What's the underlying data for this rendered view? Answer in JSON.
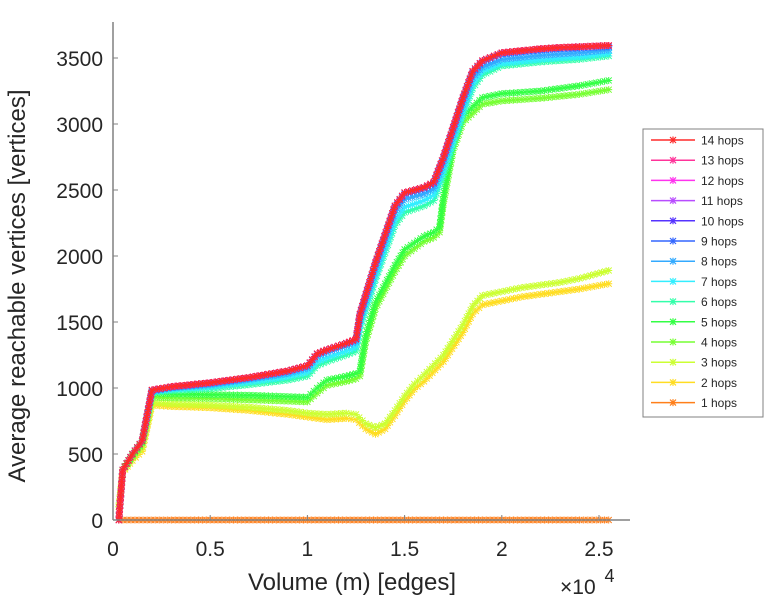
{
  "chart_data": {
    "type": "line",
    "title": "",
    "xlabel": "Volume (m) [edges]",
    "ylabel": "Average reachable vertices [vertices]",
    "x_exponent_label": "×10",
    "x_exponent_power": "4",
    "xlim": [
      0,
      2.66
    ],
    "ylim": [
      0,
      3700
    ],
    "x_ticks": [
      0,
      0.5,
      1,
      1.5,
      2,
      2.5
    ],
    "x_tick_labels": [
      "0",
      "0.5",
      "1",
      "1.5",
      "2",
      "2.5"
    ],
    "y_ticks": [
      0,
      500,
      1000,
      1500,
      2000,
      2500,
      3000,
      3500
    ],
    "y_tick_labels": [
      "0",
      "500",
      "1000",
      "1500",
      "2000",
      "2500",
      "3000",
      "3500"
    ],
    "grid": false,
    "legend_position": "right",
    "x_units_note": "x values in units of 10^4 edges",
    "series": [
      {
        "name": "14 hops",
        "color": "#ff2a2a",
        "x": [
          0.03,
          0.05,
          0.1,
          0.15,
          0.2,
          0.3,
          0.5,
          0.7,
          0.9,
          1.0,
          1.05,
          1.1,
          1.2,
          1.25,
          1.27,
          1.35,
          1.45,
          1.5,
          1.6,
          1.65,
          1.7,
          1.8,
          1.85,
          1.9,
          2.0,
          2.1,
          2.2,
          2.3,
          2.4,
          2.55
        ],
        "y": [
          0,
          380,
          500,
          600,
          985,
          1010,
          1040,
          1080,
          1130,
          1170,
          1260,
          1290,
          1340,
          1370,
          1560,
          1950,
          2380,
          2480,
          2520,
          2560,
          2750,
          3200,
          3400,
          3480,
          3540,
          3555,
          3570,
          3580,
          3585,
          3595
        ]
      },
      {
        "name": "13 hops",
        "color": "#ff3399",
        "x": [
          0.03,
          0.05,
          0.1,
          0.15,
          0.2,
          0.3,
          0.5,
          0.7,
          0.9,
          1.0,
          1.05,
          1.1,
          1.2,
          1.25,
          1.27,
          1.35,
          1.45,
          1.5,
          1.6,
          1.65,
          1.7,
          1.8,
          1.85,
          1.9,
          2.0,
          2.1,
          2.2,
          2.3,
          2.4,
          2.55
        ],
        "y": [
          0,
          380,
          500,
          600,
          985,
          1010,
          1040,
          1080,
          1130,
          1170,
          1260,
          1290,
          1340,
          1370,
          1560,
          1950,
          2380,
          2480,
          2520,
          2560,
          2750,
          3200,
          3400,
          3480,
          3540,
          3555,
          3570,
          3580,
          3585,
          3595
        ]
      },
      {
        "name": "12 hops",
        "color": "#ff33ee",
        "x": [
          0.03,
          0.05,
          0.1,
          0.15,
          0.2,
          0.3,
          0.5,
          0.7,
          0.9,
          1.0,
          1.05,
          1.1,
          1.2,
          1.25,
          1.27,
          1.35,
          1.45,
          1.5,
          1.6,
          1.65,
          1.7,
          1.8,
          1.85,
          1.9,
          2.0,
          2.1,
          2.2,
          2.3,
          2.4,
          2.55
        ],
        "y": [
          0,
          380,
          500,
          600,
          985,
          1010,
          1040,
          1080,
          1130,
          1170,
          1260,
          1290,
          1340,
          1370,
          1560,
          1950,
          2380,
          2480,
          2520,
          2560,
          2750,
          3200,
          3400,
          3480,
          3540,
          3555,
          3570,
          3580,
          3585,
          3595
        ]
      },
      {
        "name": "11 hops",
        "color": "#b84dff",
        "x": [
          0.03,
          0.05,
          0.1,
          0.15,
          0.2,
          0.3,
          0.5,
          0.7,
          0.9,
          1.0,
          1.05,
          1.1,
          1.2,
          1.25,
          1.27,
          1.35,
          1.45,
          1.5,
          1.6,
          1.65,
          1.7,
          1.8,
          1.85,
          1.9,
          2.0,
          2.1,
          2.2,
          2.3,
          2.4,
          2.55
        ],
        "y": [
          0,
          380,
          500,
          600,
          985,
          1010,
          1040,
          1080,
          1130,
          1170,
          1260,
          1290,
          1340,
          1370,
          1560,
          1950,
          2380,
          2480,
          2520,
          2560,
          2750,
          3200,
          3400,
          3480,
          3540,
          3555,
          3570,
          3580,
          3585,
          3595
        ]
      },
      {
        "name": "10 hops",
        "color": "#5533ff",
        "x": [
          0.03,
          0.05,
          0.1,
          0.15,
          0.2,
          0.3,
          0.5,
          0.7,
          0.9,
          1.0,
          1.05,
          1.1,
          1.2,
          1.25,
          1.27,
          1.35,
          1.45,
          1.5,
          1.6,
          1.65,
          1.7,
          1.8,
          1.85,
          1.9,
          2.0,
          2.1,
          2.2,
          2.3,
          2.4,
          2.55
        ],
        "y": [
          0,
          380,
          500,
          600,
          985,
          1010,
          1040,
          1080,
          1130,
          1170,
          1260,
          1290,
          1340,
          1370,
          1560,
          1950,
          2380,
          2480,
          2520,
          2560,
          2750,
          3200,
          3400,
          3480,
          3540,
          3555,
          3570,
          3580,
          3585,
          3595
        ]
      },
      {
        "name": "9 hops",
        "color": "#3366ff",
        "x": [
          0.03,
          0.05,
          0.1,
          0.15,
          0.2,
          0.3,
          0.5,
          0.7,
          0.9,
          1.0,
          1.05,
          1.1,
          1.2,
          1.25,
          1.27,
          1.35,
          1.45,
          1.5,
          1.6,
          1.65,
          1.7,
          1.8,
          1.85,
          1.9,
          2.0,
          2.1,
          2.2,
          2.3,
          2.4,
          2.55
        ],
        "y": [
          0,
          380,
          500,
          600,
          980,
          1005,
          1035,
          1075,
          1125,
          1165,
          1255,
          1285,
          1335,
          1365,
          1550,
          1940,
          2370,
          2470,
          2510,
          2550,
          2740,
          3190,
          3390,
          3470,
          3530,
          3545,
          3560,
          3570,
          3575,
          3585
        ]
      },
      {
        "name": "8 hops",
        "color": "#33aaff",
        "x": [
          0.03,
          0.05,
          0.1,
          0.15,
          0.2,
          0.3,
          0.5,
          0.7,
          0.9,
          1.0,
          1.05,
          1.1,
          1.2,
          1.25,
          1.27,
          1.35,
          1.45,
          1.5,
          1.6,
          1.65,
          1.7,
          1.8,
          1.85,
          1.9,
          2.0,
          2.1,
          2.2,
          2.3,
          2.4,
          2.55
        ],
        "y": [
          0,
          380,
          500,
          600,
          975,
          1000,
          1025,
          1065,
          1110,
          1150,
          1240,
          1270,
          1320,
          1350,
          1520,
          1900,
          2330,
          2430,
          2470,
          2510,
          2700,
          3150,
          3350,
          3430,
          3490,
          3505,
          3520,
          3530,
          3540,
          3560
        ]
      },
      {
        "name": "7 hops",
        "color": "#33eeff",
        "x": [
          0.03,
          0.05,
          0.1,
          0.15,
          0.2,
          0.3,
          0.5,
          0.7,
          0.9,
          1.0,
          1.05,
          1.1,
          1.2,
          1.25,
          1.27,
          1.35,
          1.45,
          1.5,
          1.6,
          1.65,
          1.7,
          1.8,
          1.85,
          1.9,
          2.0,
          2.1,
          2.2,
          2.3,
          2.4,
          2.55
        ],
        "y": [
          0,
          380,
          500,
          600,
          970,
          990,
          1010,
          1045,
          1085,
          1120,
          1200,
          1230,
          1280,
          1310,
          1480,
          1850,
          2270,
          2370,
          2420,
          2460,
          2650,
          3100,
          3300,
          3400,
          3460,
          3475,
          3490,
          3500,
          3510,
          3535
        ]
      },
      {
        "name": "6 hops",
        "color": "#33ffaa",
        "x": [
          0.03,
          0.05,
          0.1,
          0.15,
          0.2,
          0.3,
          0.5,
          0.7,
          0.9,
          1.0,
          1.05,
          1.1,
          1.2,
          1.25,
          1.27,
          1.35,
          1.45,
          1.5,
          1.6,
          1.65,
          1.7,
          1.8,
          1.85,
          1.9,
          2.0,
          2.1,
          2.2,
          2.3,
          2.4,
          2.55
        ],
        "y": [
          0,
          380,
          500,
          600,
          965,
          980,
          995,
          1025,
          1060,
          1090,
          1170,
          1200,
          1250,
          1280,
          1450,
          1820,
          2230,
          2330,
          2380,
          2420,
          2610,
          3060,
          3270,
          3370,
          3440,
          3455,
          3470,
          3480,
          3490,
          3515
        ]
      },
      {
        "name": "5 hops",
        "color": "#33ff44",
        "x": [
          0.03,
          0.05,
          0.1,
          0.15,
          0.2,
          0.3,
          0.5,
          0.7,
          0.9,
          1.0,
          1.05,
          1.1,
          1.2,
          1.25,
          1.27,
          1.3,
          1.35,
          1.45,
          1.5,
          1.6,
          1.65,
          1.68,
          1.7,
          1.75,
          1.8,
          1.9,
          2.0,
          2.1,
          2.2,
          2.3,
          2.4,
          2.55
        ],
        "y": [
          0,
          380,
          490,
          590,
          960,
          955,
          950,
          945,
          935,
          930,
          1000,
          1060,
          1090,
          1110,
          1130,
          1400,
          1650,
          1930,
          2050,
          2150,
          2180,
          2220,
          2450,
          2850,
          3060,
          3200,
          3230,
          3240,
          3250,
          3270,
          3290,
          3330
        ]
      },
      {
        "name": "4 hops",
        "color": "#77ff33",
        "x": [
          0.03,
          0.05,
          0.1,
          0.15,
          0.2,
          0.3,
          0.5,
          0.7,
          0.9,
          1.0,
          1.05,
          1.1,
          1.2,
          1.25,
          1.27,
          1.3,
          1.35,
          1.45,
          1.5,
          1.6,
          1.65,
          1.68,
          1.7,
          1.75,
          1.8,
          1.9,
          2.0,
          2.1,
          2.2,
          2.3,
          2.4,
          2.55
        ],
        "y": [
          0,
          380,
          480,
          580,
          930,
          925,
          920,
          910,
          900,
          895,
          960,
          1020,
          1050,
          1070,
          1090,
          1350,
          1600,
          1880,
          2000,
          2110,
          2140,
          2180,
          2400,
          2800,
          3010,
          3150,
          3175,
          3185,
          3195,
          3210,
          3225,
          3260
        ]
      },
      {
        "name": "3 hops",
        "color": "#ccff33",
        "x": [
          0.03,
          0.05,
          0.1,
          0.15,
          0.2,
          0.3,
          0.5,
          0.7,
          0.9,
          1.0,
          1.1,
          1.2,
          1.25,
          1.3,
          1.35,
          1.4,
          1.45,
          1.5,
          1.55,
          1.6,
          1.7,
          1.8,
          1.85,
          1.9,
          2.0,
          2.1,
          2.2,
          2.3,
          2.4,
          2.55
        ],
        "y": [
          100,
          370,
          470,
          550,
          890,
          880,
          870,
          855,
          830,
          810,
          800,
          810,
          800,
          730,
          700,
          730,
          830,
          940,
          1030,
          1100,
          1250,
          1480,
          1620,
          1700,
          1730,
          1760,
          1780,
          1800,
          1830,
          1890
        ]
      },
      {
        "name": "2 hops",
        "color": "#ffdd22",
        "x": [
          0.03,
          0.05,
          0.1,
          0.15,
          0.2,
          0.3,
          0.5,
          0.7,
          0.9,
          1.0,
          1.1,
          1.2,
          1.25,
          1.3,
          1.35,
          1.4,
          1.45,
          1.5,
          1.55,
          1.6,
          1.7,
          1.8,
          1.85,
          1.9,
          2.0,
          2.1,
          2.2,
          2.3,
          2.4,
          2.55
        ],
        "y": [
          100,
          360,
          450,
          520,
          870,
          860,
          850,
          830,
          800,
          780,
          760,
          770,
          760,
          690,
          650,
          690,
          790,
          900,
          990,
          1050,
          1200,
          1420,
          1560,
          1630,
          1660,
          1690,
          1710,
          1730,
          1750,
          1790
        ]
      },
      {
        "name": "1 hops",
        "color": "#ff7f1a",
        "x": [
          0.03,
          0.3,
          0.6,
          0.9,
          1.2,
          1.5,
          1.8,
          2.1,
          2.4,
          2.55
        ],
        "y": [
          0,
          0,
          0,
          0,
          0,
          0,
          0,
          0,
          0,
          0
        ]
      }
    ]
  }
}
